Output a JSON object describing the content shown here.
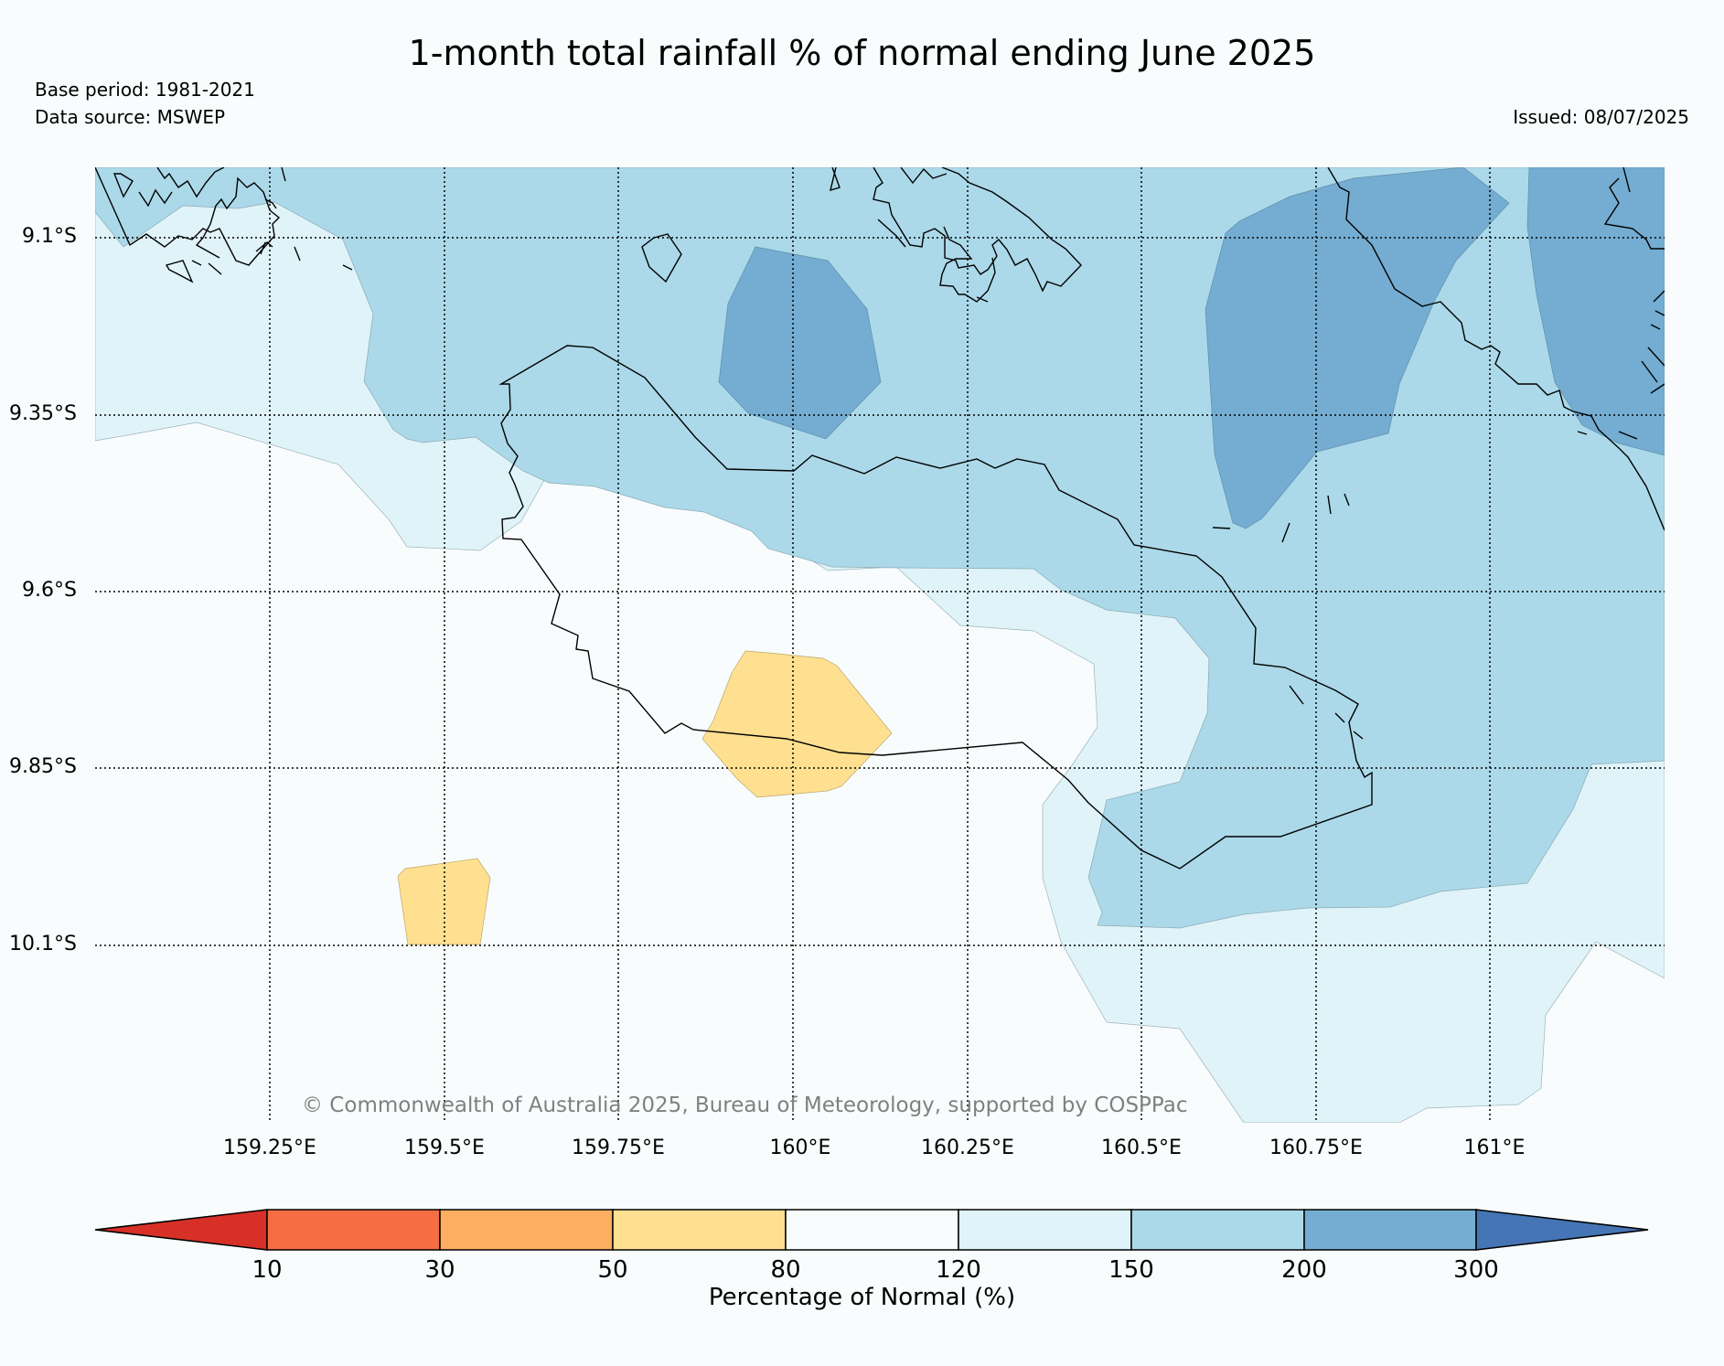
{
  "header": {
    "title": "1-month total rainfall % of normal ending June 2025",
    "base_period": "Base period: 1981-2021",
    "data_source": "Data source: MSWEP",
    "issued": "Issued: 08/07/2025"
  },
  "map": {
    "latitude_labels": [
      "9.1°S",
      "9.35°S",
      "9.6°S",
      "9.85°S",
      "10.1°S"
    ],
    "longitude_labels": [
      "159.25°E",
      "159.5°E",
      "159.75°E",
      "160°E",
      "160.25°E",
      "160.5°E",
      "160.75°E",
      "161°E"
    ],
    "extent": {
      "lon_min": 159.0,
      "lon_max": 161.25,
      "lat_min": -10.35,
      "lat_max": -9.0
    },
    "copyright": "© Commonwealth of Australia 2025, Bureau of Meteorology, supported by COSPPac"
  },
  "colorbar": {
    "title": "Percentage of Normal (%)",
    "ticks": [
      "10",
      "30",
      "50",
      "80",
      "120",
      "150",
      "200",
      "300"
    ],
    "colors": [
      "#d73027",
      "#f46d43",
      "#fdae61",
      "#fee090",
      "#f8fcfd",
      "#e0f3f8",
      "#abd9e9",
      "#74add1",
      "#4575b4"
    ]
  }
}
